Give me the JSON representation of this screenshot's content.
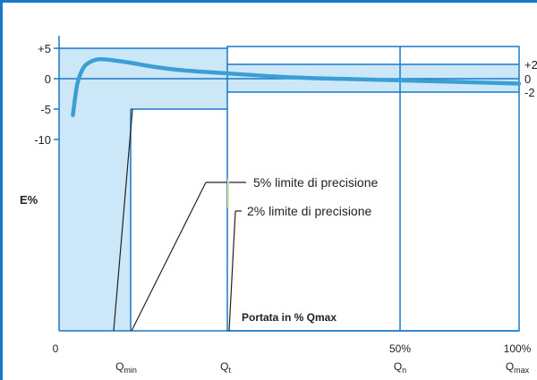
{
  "chart_data": {
    "type": "line",
    "title": "",
    "xlabel": "Portata in % Qmax",
    "ylabel": "E%",
    "y_ticks": [
      "+5",
      "0",
      "-5",
      "-10"
    ],
    "right_ticks": [
      "+2",
      "0",
      "-2"
    ],
    "x_ticks_top": [
      {
        "label": "0",
        "x": 0
      },
      {
        "label": "50%",
        "x": 50
      },
      {
        "label": "100%",
        "x": 100
      }
    ],
    "x_ticks_bottom": [
      {
        "label_main": "Q",
        "label_sub": "min",
        "x": 10
      },
      {
        "label_main": "Q",
        "label_sub": "t",
        "x": 23
      },
      {
        "label_main": "Q",
        "label_sub": "n",
        "x": 50
      },
      {
        "label_main": "Q",
        "label_sub": "max",
        "x": 100
      }
    ],
    "ylim": [
      -10,
      5
    ],
    "xlim": [
      0,
      100
    ],
    "limits": [
      {
        "label": "5% limite di precisione",
        "x_from": 10,
        "x_to": 23,
        "lower": -5,
        "upper": 5
      },
      {
        "label": "2% limite di precisione",
        "x_from": 23,
        "x_to": 100,
        "lower": -2,
        "upper": 2
      }
    ],
    "series": [
      {
        "x": [
          3,
          3.5,
          4,
          5,
          6,
          8,
          10,
          12,
          15,
          20,
          25,
          30,
          40,
          50,
          60,
          70,
          80,
          90,
          100
        ],
        "y": [
          -6,
          -3,
          -0.5,
          1.5,
          2.5,
          3.2,
          3.2,
          3.0,
          2.7,
          2.0,
          1.5,
          1.2,
          0.7,
          0.2,
          0,
          -0.2,
          -0.4,
          -0.6,
          -0.8
        ]
      }
    ],
    "colors": {
      "frame": "#1a78c8",
      "fill": "#cce8f8",
      "curve": "#3b9fd6",
      "line": "#222222",
      "tick_label": "#222222"
    }
  }
}
